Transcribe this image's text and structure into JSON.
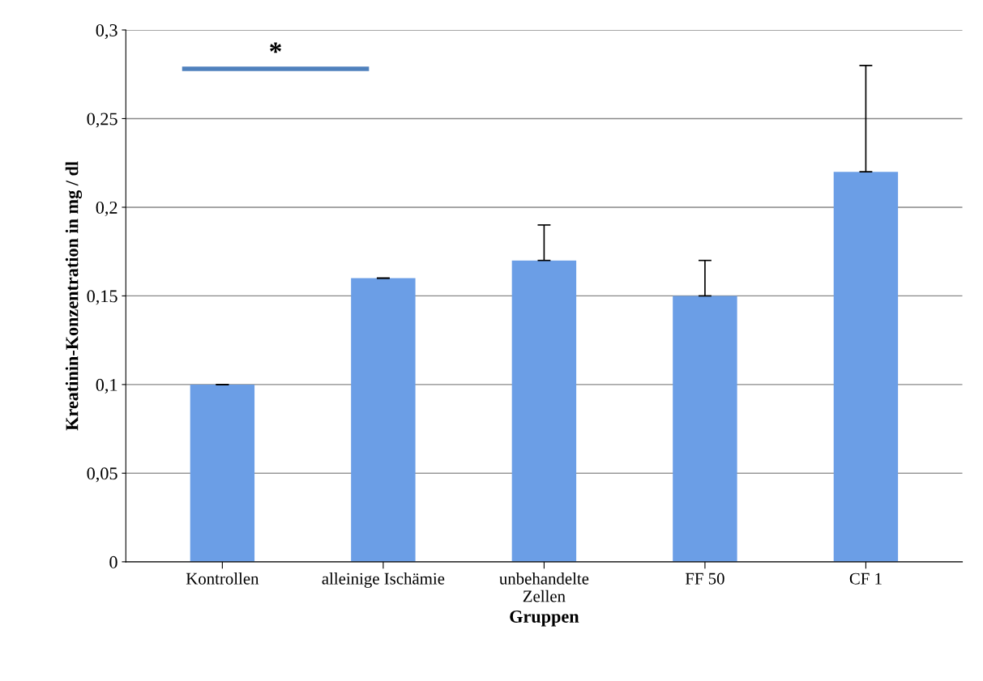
{
  "chart_data": {
    "type": "bar",
    "xlabel": "Gruppen",
    "ylabel": "Kreatinin-Konzentration in mg / dl",
    "categories": [
      "Kontrollen",
      "alleinige Ischämie",
      "unbehandelte\nZellen",
      "FF 50",
      "CF 1"
    ],
    "values": [
      0.1,
      0.16,
      0.17,
      0.15,
      0.22
    ],
    "errors": [
      [
        0.1,
        0.1
      ],
      [
        0.16,
        0.16
      ],
      [
        0.17,
        0.19
      ],
      [
        0.15,
        0.17
      ],
      [
        0.22,
        0.28
      ]
    ],
    "color": "#6b9ee6",
    "ylim": [
      0,
      0.3
    ],
    "yticks": [
      {
        "value": 0,
        "label": "0"
      },
      {
        "value": 0.05,
        "label": "0,05"
      },
      {
        "value": 0.1,
        "label": "0,1"
      },
      {
        "value": 0.15,
        "label": "0,15"
      },
      {
        "value": 0.2,
        "label": "0,2"
      },
      {
        "value": 0.25,
        "label": "0,25"
      },
      {
        "value": 0.3,
        "label": "0,3"
      }
    ],
    "grid": "y",
    "annotations": [
      "*"
    ]
  }
}
